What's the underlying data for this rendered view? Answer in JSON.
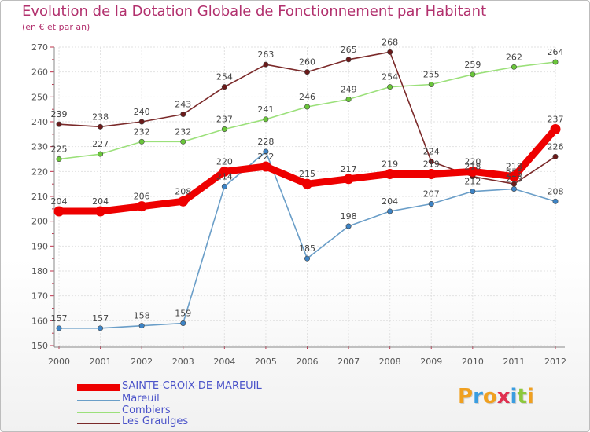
{
  "title": "Evolution de la Dotation Globale de Fonctionnement par Habitant",
  "subtitle": "(en € et par an)",
  "logo": {
    "text": "Proxiti",
    "letters": [
      "P",
      "r",
      "o",
      "x",
      "i",
      "t",
      "i"
    ],
    "colors": [
      "#f0a020",
      "#3a9de0",
      "#f0a020",
      "#e03050",
      "#3a9de0",
      "#8cc83c",
      "#f0a020"
    ]
  },
  "chart_data": {
    "type": "line",
    "title": "Evolution de la Dotation Globale de Fonctionnement par Habitant",
    "subtitle": "(en € et par an)",
    "xlabel": "",
    "ylabel": "",
    "x": [
      "2000",
      "2001",
      "2002",
      "2003",
      "2004",
      "2005",
      "2006",
      "2007",
      "2008",
      "2009",
      "2010",
      "2011",
      "2012"
    ],
    "ylim": [
      150,
      270
    ],
    "yticks": [
      "150",
      "160",
      "170",
      "180",
      "190",
      "200",
      "210",
      "220",
      "230",
      "240",
      "250",
      "260",
      "270"
    ],
    "grid": true,
    "legend_position": "bottom-left",
    "series": [
      {
        "name": "SAINTE-CROIX-DE-MAREUIL",
        "color": "#ee0000",
        "point_color": "#ee0000",
        "width": "thick",
        "values": [
          204,
          204,
          206,
          208,
          220,
          222,
          215,
          217,
          219,
          219,
          220,
          218,
          237
        ],
        "labels": [
          "204",
          "204",
          "206",
          "208",
          "220",
          "222",
          "215",
          "217",
          "219",
          "219",
          "220",
          "218",
          "237"
        ]
      },
      {
        "name": "Mareuil",
        "color": "#6a9ec8",
        "point_color": "#3d84c6",
        "width": "thin",
        "values": [
          157,
          157,
          158,
          159,
          214,
          228,
          185,
          198,
          204,
          207,
          212,
          213,
          208
        ],
        "labels": [
          "157",
          "157",
          "158",
          "159",
          "214",
          "228",
          "185",
          "198",
          "204",
          "207",
          "212",
          "213",
          "208"
        ]
      },
      {
        "name": "Combiers",
        "color": "#9be07a",
        "point_color": "#6ac63a",
        "width": "thin",
        "values": [
          225,
          227,
          232,
          232,
          237,
          241,
          246,
          249,
          254,
          255,
          259,
          262,
          264
        ],
        "labels": [
          "225",
          "227",
          "232",
          "232",
          "237",
          "241",
          "246",
          "249",
          "254",
          "255",
          "259",
          "262",
          "264"
        ]
      },
      {
        "name": "Les Graulges",
        "color": "#7b2a2a",
        "point_color": "#6b1a1a",
        "width": "thin",
        "values": [
          239,
          238,
          240,
          243,
          254,
          263,
          260,
          265,
          268,
          224,
          218,
          215,
          226
        ],
        "labels": [
          "239",
          "238",
          "240",
          "243",
          "254",
          "263",
          "260",
          "265",
          "268",
          "224",
          "218",
          "215",
          "226"
        ]
      }
    ]
  }
}
